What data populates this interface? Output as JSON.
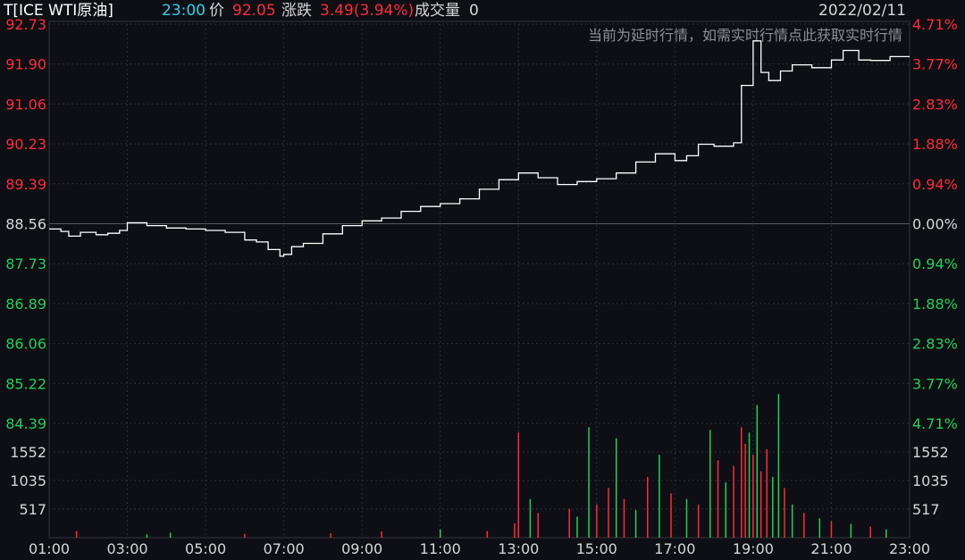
{
  "header": {
    "symbol": "T[ICE WTI原油]",
    "time": "23:00",
    "price_label": "价",
    "price": "92.05",
    "change_label": "涨跌",
    "change": "3.49(3.94%)",
    "volume_label": "成交量",
    "volume": "0",
    "date": "2022/02/11"
  },
  "notice": "当前为延时行情，如需实时行情点此获取实时行情",
  "colors": {
    "background": "#0d0f14",
    "up": "#ff2a3a",
    "down": "#1fd05a",
    "line": "#ffffff",
    "grid": "#2a2d33",
    "cyan": "#2fd0e6",
    "text": "#d6d6d6"
  },
  "chart_data": {
    "type": "line",
    "title": "T[ICE WTI原油]",
    "reference_price": 88.56,
    "ylim": [
      84.39,
      92.73
    ],
    "grid": true,
    "price_ticks": [
      {
        "label": "92.73",
        "pct": "4.71%",
        "dir": "up"
      },
      {
        "label": "91.90",
        "pct": "3.77%",
        "dir": "up"
      },
      {
        "label": "91.06",
        "pct": "2.83%",
        "dir": "up"
      },
      {
        "label": "90.23",
        "pct": "1.88%",
        "dir": "up"
      },
      {
        "label": "89.39",
        "pct": "0.94%",
        "dir": "up"
      },
      {
        "label": "88.56",
        "pct": "0.00%",
        "dir": "flat"
      },
      {
        "label": "87.73",
        "pct": "0.94%",
        "dir": "down"
      },
      {
        "label": "86.89",
        "pct": "1.88%",
        "dir": "down"
      },
      {
        "label": "86.06",
        "pct": "2.83%",
        "dir": "down"
      },
      {
        "label": "85.22",
        "pct": "3.77%",
        "dir": "down"
      },
      {
        "label": "84.39",
        "pct": "4.71%",
        "dir": "down"
      }
    ],
    "volume_ticks": [
      "1552",
      "1035",
      "517"
    ],
    "volume_max": 2069,
    "x_labels": [
      "01:00",
      "03:00",
      "05:00",
      "07:00",
      "09:00",
      "11:00",
      "13:00",
      "15:00",
      "17:00",
      "19:00",
      "21:00",
      "23:00"
    ],
    "x_range_hours": [
      1,
      23
    ],
    "series": [
      {
        "values": [
          [
            1.0,
            88.45
          ],
          [
            1.3,
            88.4
          ],
          [
            1.5,
            88.3
          ],
          [
            1.8,
            88.38
          ],
          [
            2.2,
            88.33
          ],
          [
            2.5,
            88.36
          ],
          [
            2.8,
            88.42
          ],
          [
            3.0,
            88.58
          ],
          [
            3.5,
            88.52
          ],
          [
            4.0,
            88.47
          ],
          [
            4.5,
            88.45
          ],
          [
            5.0,
            88.42
          ],
          [
            5.5,
            88.38
          ],
          [
            6.0,
            88.22
          ],
          [
            6.3,
            88.18
          ],
          [
            6.6,
            88.02
          ],
          [
            6.9,
            87.88
          ],
          [
            7.0,
            87.92
          ],
          [
            7.2,
            88.08
          ],
          [
            7.5,
            88.15
          ],
          [
            8.0,
            88.35
          ],
          [
            8.5,
            88.52
          ],
          [
            9.0,
            88.62
          ],
          [
            9.5,
            88.68
          ],
          [
            10.0,
            88.82
          ],
          [
            10.5,
            88.92
          ],
          [
            11.0,
            88.98
          ],
          [
            11.5,
            89.08
          ],
          [
            12.0,
            89.28
          ],
          [
            12.5,
            89.48
          ],
          [
            13.0,
            89.62
          ],
          [
            13.5,
            89.52
          ],
          [
            14.0,
            89.38
          ],
          [
            14.5,
            89.44
          ],
          [
            15.0,
            89.5
          ],
          [
            15.5,
            89.62
          ],
          [
            16.0,
            89.85
          ],
          [
            16.5,
            90.02
          ],
          [
            17.0,
            89.88
          ],
          [
            17.3,
            89.98
          ],
          [
            17.6,
            90.22
          ],
          [
            18.0,
            90.18
          ],
          [
            18.5,
            90.25
          ],
          [
            18.7,
            91.45
          ],
          [
            19.0,
            92.38
          ],
          [
            19.2,
            91.72
          ],
          [
            19.4,
            91.55
          ],
          [
            19.7,
            91.75
          ],
          [
            20.0,
            91.88
          ],
          [
            20.5,
            91.82
          ],
          [
            21.0,
            91.98
          ],
          [
            21.3,
            92.18
          ],
          [
            21.7,
            91.98
          ],
          [
            22.0,
            91.97
          ],
          [
            22.5,
            92.05
          ],
          [
            23.0,
            92.05
          ]
        ]
      }
    ],
    "volume_bars": [
      {
        "h": 1.7,
        "v": 120,
        "dir": "up"
      },
      {
        "h": 3.5,
        "v": 60,
        "dir": "down"
      },
      {
        "h": 4.1,
        "v": 90,
        "dir": "down"
      },
      {
        "h": 6.0,
        "v": 70,
        "dir": "up"
      },
      {
        "h": 8.2,
        "v": 80,
        "dir": "up"
      },
      {
        "h": 9.5,
        "v": 110,
        "dir": "up"
      },
      {
        "h": 11.0,
        "v": 150,
        "dir": "down"
      },
      {
        "h": 12.2,
        "v": 120,
        "dir": "up"
      },
      {
        "h": 12.9,
        "v": 260,
        "dir": "up"
      },
      {
        "h": 13.0,
        "v": 1900,
        "dir": "up"
      },
      {
        "h": 13.3,
        "v": 700,
        "dir": "down"
      },
      {
        "h": 13.5,
        "v": 450,
        "dir": "up"
      },
      {
        "h": 14.3,
        "v": 520,
        "dir": "up"
      },
      {
        "h": 14.5,
        "v": 380,
        "dir": "down"
      },
      {
        "h": 14.8,
        "v": 2000,
        "dir": "down"
      },
      {
        "h": 15.0,
        "v": 600,
        "dir": "up"
      },
      {
        "h": 15.3,
        "v": 900,
        "dir": "up"
      },
      {
        "h": 15.5,
        "v": 1800,
        "dir": "down"
      },
      {
        "h": 15.7,
        "v": 700,
        "dir": "up"
      },
      {
        "h": 16.0,
        "v": 500,
        "dir": "down"
      },
      {
        "h": 16.3,
        "v": 1100,
        "dir": "up"
      },
      {
        "h": 16.6,
        "v": 1500,
        "dir": "down"
      },
      {
        "h": 16.9,
        "v": 800,
        "dir": "up"
      },
      {
        "h": 17.3,
        "v": 700,
        "dir": "down"
      },
      {
        "h": 17.6,
        "v": 600,
        "dir": "up"
      },
      {
        "h": 17.9,
        "v": 1950,
        "dir": "down"
      },
      {
        "h": 18.1,
        "v": 1400,
        "dir": "up"
      },
      {
        "h": 18.3,
        "v": 1000,
        "dir": "down"
      },
      {
        "h": 18.5,
        "v": 1300,
        "dir": "up"
      },
      {
        "h": 18.7,
        "v": 2000,
        "dir": "up"
      },
      {
        "h": 18.8,
        "v": 1700,
        "dir": "up"
      },
      {
        "h": 18.9,
        "v": 1900,
        "dir": "down"
      },
      {
        "h": 19.0,
        "v": 1500,
        "dir": "up"
      },
      {
        "h": 19.1,
        "v": 2400,
        "dir": "down"
      },
      {
        "h": 19.2,
        "v": 1200,
        "dir": "up"
      },
      {
        "h": 19.35,
        "v": 1600,
        "dir": "up"
      },
      {
        "h": 19.5,
        "v": 1100,
        "dir": "down"
      },
      {
        "h": 19.65,
        "v": 2600,
        "dir": "down"
      },
      {
        "h": 19.8,
        "v": 900,
        "dir": "up"
      },
      {
        "h": 20.0,
        "v": 600,
        "dir": "down"
      },
      {
        "h": 20.3,
        "v": 450,
        "dir": "up"
      },
      {
        "h": 20.7,
        "v": 350,
        "dir": "down"
      },
      {
        "h": 21.0,
        "v": 300,
        "dir": "up"
      },
      {
        "h": 21.5,
        "v": 250,
        "dir": "down"
      },
      {
        "h": 22.0,
        "v": 200,
        "dir": "up"
      },
      {
        "h": 22.4,
        "v": 150,
        "dir": "down"
      }
    ]
  }
}
